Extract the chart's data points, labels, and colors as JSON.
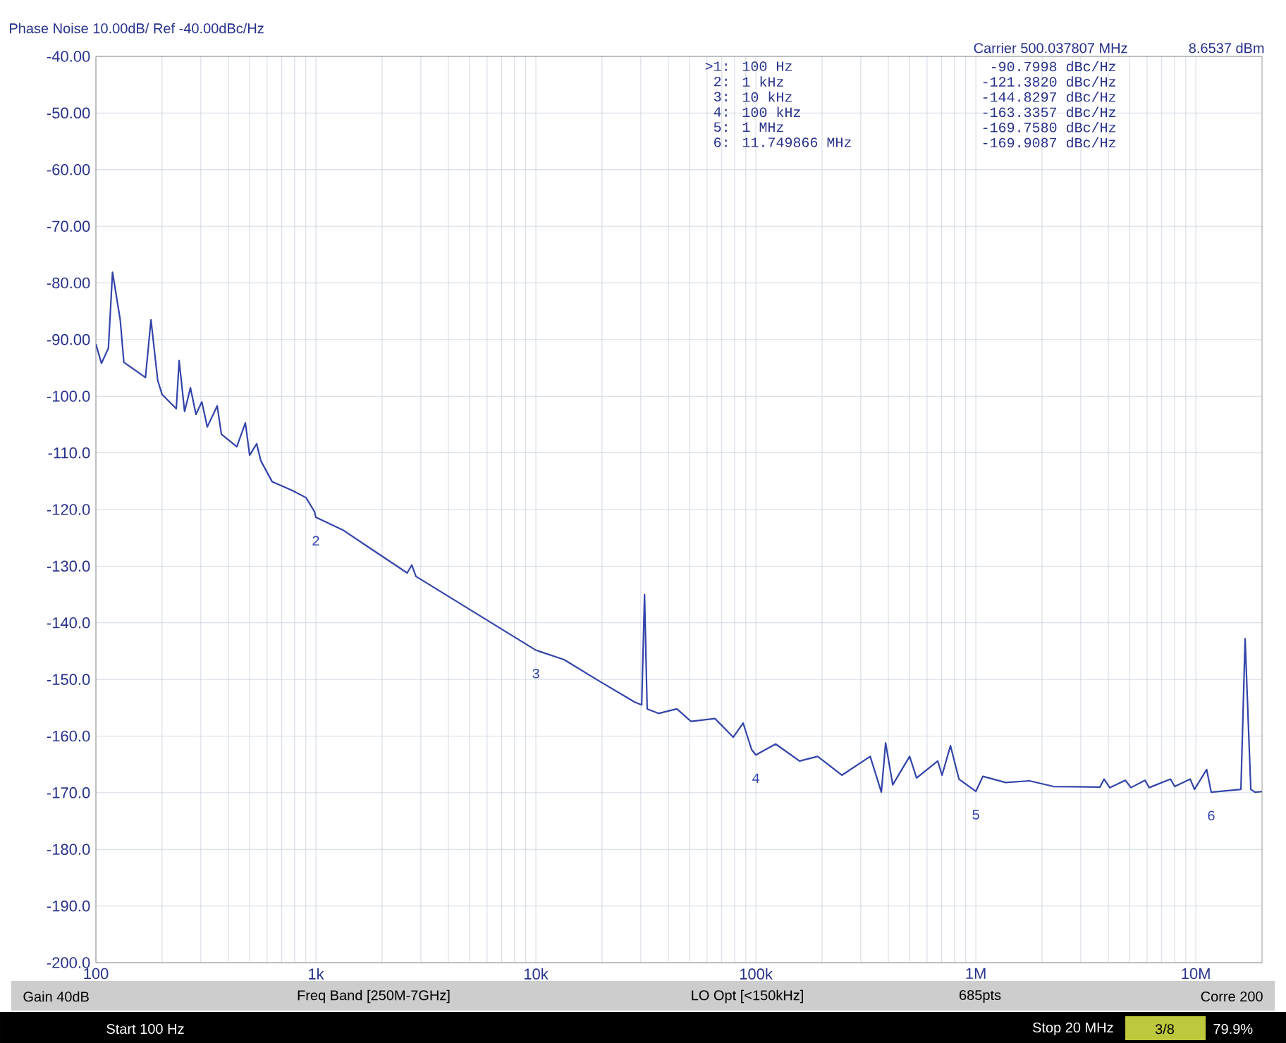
{
  "chart_data": {
    "type": "line",
    "title": "Phase Noise 10.00dB/ Ref -40.00dBc/Hz",
    "annotations": [
      "Carrier 500.037807 MHz",
      "8.6537 dBm",
      ">1:",
      "100 Hz",
      "-90.7998 dBc/Hz",
      "2:",
      "1 kHz",
      "-121.3820 dBc/Hz",
      "3:",
      "10 kHz",
      "-144.8297 dBc/Hz",
      "4:",
      "100 kHz",
      "-163.3357 dBc/Hz",
      "5:",
      "1 MHz",
      "-169.7580 dBc/Hz",
      "6:",
      "11.749866 MHz",
      "-169.9087 dBc/Hz",
      "Gain 40dB",
      "Freq Band [250M-7GHz]",
      "LO Opt [<150kHz]",
      "685pts",
      "Corre 200",
      "Start 100 Hz",
      "Stop 20 MHz",
      "3/8",
      "79.9%",
      {
        "text": "2",
        "x": 1000,
        "y": -121.382
      },
      {
        "text": "3",
        "x": 10000,
        "y": -144.8297
      },
      {
        "text": "4",
        "x": 100000,
        "y": -163.3357
      },
      {
        "text": "5",
        "x": 1000000,
        "y": -169.758
      },
      {
        "text": "6",
        "x": 11749866,
        "y": -169.9087
      }
    ],
    "x": [
      100,
      106,
      114,
      119,
      129,
      134,
      168,
      178,
      191,
      200,
      232,
      239,
      253,
      269,
      285,
      303,
      321,
      356,
      372,
      437,
      478,
      500,
      538,
      562,
      633,
      778,
      902,
      986,
      1000,
      1324,
      2600,
      2729,
      2850,
      10000,
      13430,
      18870,
      28120,
      30270,
      31190,
      32060,
      36100,
      43750,
      50700,
      65170,
      78900,
      87500,
      95700,
      100000,
      123000,
      158000,
      191000,
      246000,
      331000,
      372000,
      389000,
      419000,
      500000,
      538000,
      671000,
      702000,
      767000,
      838000,
      1000000,
      1077000,
      1365000,
      1754000,
      2254000,
      3667000,
      3828000,
      4062000,
      4779000,
      5070000,
      5875000,
      6140000,
      7670000,
      8020000,
      9430000,
      9860000,
      11200000,
      11749866,
      16030000,
      16750000,
      17780000,
      18580000,
      20000000
    ],
    "values": [
      -90.8,
      -94.2,
      -91.5,
      -78.1,
      -86.5,
      -94,
      -96.7,
      -86.5,
      -97.2,
      -99.7,
      -102.2,
      -93.7,
      -102.7,
      -98.5,
      -103.2,
      -101,
      -105.4,
      -101.7,
      -106.7,
      -108.9,
      -104.7,
      -110.4,
      -108.4,
      -111.4,
      -115.1,
      -116.6,
      -117.9,
      -120.4,
      -121.382,
      -123.6,
      -131.2,
      -129.8,
      -131.8,
      -144.8297,
      -146.5,
      -150,
      -154,
      -154.5,
      -135,
      -155.2,
      -156,
      -155.2,
      -157.4,
      -156.9,
      -160.2,
      -157.7,
      -162.4,
      -163.3357,
      -161.4,
      -164.4,
      -163.6,
      -166.9,
      -163.6,
      -169.9,
      -161.2,
      -168.6,
      -163.6,
      -167.4,
      -164.4,
      -166.9,
      -161.7,
      -167.6,
      -169.758,
      -167.1,
      -168.2,
      -167.9,
      -168.9,
      -169,
      -167.6,
      -169.1,
      -167.8,
      -169.1,
      -167.8,
      -169.1,
      -167.6,
      -168.9,
      -167.6,
      -169.4,
      -165.9,
      -169.9087,
      -169.4,
      -142.8,
      -169.4,
      -169.9,
      -169.8
    ],
    "color": "#3344aa",
    "line_style": "solid",
    "log": "x",
    "grid": true,
    "xlim": [
      100,
      20000000
    ],
    "ylim": [
      -200,
      -40
    ],
    "xticks": [
      {
        "value": 100,
        "label": "100"
      },
      {
        "value": 1000,
        "label": "1k"
      },
      {
        "value": 10000,
        "label": "10k"
      },
      {
        "value": 100000,
        "label": "100k"
      },
      {
        "value": 1000000,
        "label": "1M"
      },
      {
        "value": 10000000,
        "label": "10M"
      }
    ],
    "yticks": [
      {
        "value": -40,
        "label": "-40.00"
      },
      {
        "value": -50,
        "label": "-50.00"
      },
      {
        "value": -60,
        "label": "-60.00"
      },
      {
        "value": -70,
        "label": "-70.00"
      },
      {
        "value": -80,
        "label": "-80.00"
      },
      {
        "value": -90,
        "label": "-90.00"
      },
      {
        "value": -100,
        "label": "-100.0"
      },
      {
        "value": -110,
        "label": "-110.0"
      },
      {
        "value": -120,
        "label": "-120.0"
      },
      {
        "value": -130,
        "label": "-130.0"
      },
      {
        "value": -140,
        "label": "-140.0"
      },
      {
        "value": -150,
        "label": "-150.0"
      },
      {
        "value": -160,
        "label": "-160.0"
      },
      {
        "value": -170,
        "label": "-170.0"
      },
      {
        "value": -180,
        "label": "-180.0"
      },
      {
        "value": -190,
        "label": "-190.0"
      },
      {
        "value": -200,
        "label": "-200.0"
      }
    ]
  }
}
